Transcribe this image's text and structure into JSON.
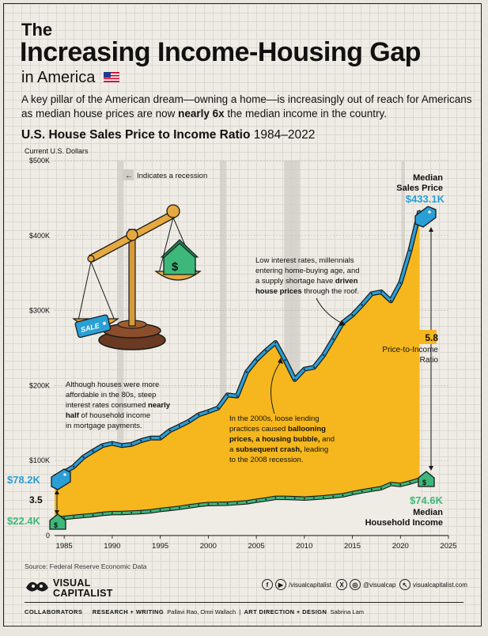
{
  "header": {
    "title_small": "The",
    "title_main": "Increasing Income-Housing Gap",
    "title_sub": "in America",
    "intro_part1": "A key pillar of the American dream—owning a home—is increasingly out of reach for Americans as median house prices are now ",
    "intro_bold": "nearly 6x",
    "intro_part2": " the median income in the country."
  },
  "chart_heading": {
    "title_bold": "U.S. House Sales Price to Income Ratio",
    "title_years": "1984–2022",
    "unit_label": "Current U.S. Dollars"
  },
  "legend": {
    "recession_note": "Indicates a recession"
  },
  "annotations": {
    "eighties_1": "Although houses were more",
    "eighties_2": "affordable in the 80s, steep",
    "eighties_3a": "interest rates consumed ",
    "eighties_3b": "nearly",
    "eighties_4a": "half",
    "eighties_4b": " of household income",
    "eighties_5": "in mortgage payments.",
    "two_thousands_1": "In the 2000s, loose lending",
    "two_thousands_2a": "practices caused ",
    "two_thousands_2b": "ballooning",
    "two_thousands_3a": "prices, a housing bubble,",
    "two_thousands_3b": " and",
    "two_thousands_4a": "a ",
    "two_thousands_4b": "subsequent crash,",
    "two_thousands_4c": " leading",
    "two_thousands_5": "to the 2008 recession.",
    "recent_1": "Low interest rates, millennials",
    "recent_2": "entering home-buying age, and",
    "recent_3a": "a supply shortage have ",
    "recent_3b": "driven",
    "recent_4a": "house prices",
    "recent_4b": " through the roof."
  },
  "labels": {
    "start_price": "$78.2K",
    "start_income": "$22.4K",
    "start_ratio": "3.5",
    "end_price_title_1": "Median",
    "end_price_title_2": "Sales Price",
    "end_price": "$433.1K",
    "end_ratio": "5.8",
    "end_ratio_title_1": "Price-to-Income",
    "end_ratio_title_2": "Ratio",
    "end_income": "$74.6K",
    "end_income_title_1": "Median",
    "end_income_title_2": "Household Income",
    "sale_tag": "SALE",
    "dollar_sign": "$"
  },
  "footer": {
    "source": "Source: Federal Reserve Economic Data",
    "brand_line1": "VISUAL",
    "brand_line2": "CAPITALIST",
    "social_1": "/visualcapitalist",
    "social_2": "@visualcap",
    "social_3": "visualcapitalist.com",
    "collaborators": "COLLABORATORS",
    "research_label": "RESEARCH + WRITING",
    "research_names": "Pallavi Rao, Omri Wallach",
    "art_label": "ART DIRECTION + DESIGN",
    "art_names": "Sabrina Lam"
  },
  "colors": {
    "price_area": "#f5b71d",
    "income_line": "#3db87a",
    "price_line": "#2a9fd6",
    "recession": "#cfccc6",
    "outline": "#1a1a1a"
  },
  "chart_data": {
    "type": "area",
    "title": "U.S. House Sales Price to Income Ratio",
    "ylabel": "Current U.S. Dollars",
    "xlim": [
      1984,
      2025
    ],
    "ylim": [
      0,
      500000
    ],
    "x_ticks": [
      "1985",
      "1990",
      "1995",
      "2000",
      "2005",
      "2010",
      "2015",
      "2020",
      "2025"
    ],
    "x_tick_values": [
      1985,
      1990,
      1995,
      2000,
      2005,
      2010,
      2015,
      2020,
      2025
    ],
    "y_ticks": [
      "0",
      "$100K",
      "$200K",
      "$300K",
      "$400K",
      "$500K"
    ],
    "y_tick_values": [
      0,
      100000,
      200000,
      300000,
      400000,
      500000
    ],
    "recessions": [
      [
        1990.5,
        1991.2
      ],
      [
        2001.2,
        2001.9
      ],
      [
        2007.9,
        2009.5
      ],
      [
        2020.1,
        2020.4
      ]
    ],
    "x": [
      1984,
      1985,
      1986,
      1987,
      1988,
      1989,
      1990,
      1991,
      1992,
      1993,
      1994,
      1995,
      1996,
      1997,
      1998,
      1999,
      2000,
      2001,
      2002,
      2003,
      2004,
      2005,
      2006,
      2007,
      2008,
      2009,
      2010,
      2011,
      2012,
      2013,
      2014,
      2015,
      2016,
      2017,
      2018,
      2019,
      2020,
      2021,
      2022
    ],
    "series": [
      {
        "name": "Median Sales Price",
        "values": [
          78200,
          84300,
          92000,
          104500,
          112500,
          120000,
          122900,
          120000,
          121500,
          126500,
          130000,
          130000,
          140000,
          146000,
          152500,
          161000,
          165300,
          170000,
          187500,
          186000,
          218000,
          234000,
          246500,
          257400,
          233900,
          208000,
          221800,
          224300,
          240500,
          262000,
          284000,
          294000,
          307500,
          322500,
          325000,
          313000,
          336900,
          380000,
          433100
        ]
      },
      {
        "name": "Median Household Income",
        "values": [
          22400,
          23600,
          24900,
          26100,
          27200,
          28900,
          29900,
          30100,
          30600,
          31200,
          32300,
          34100,
          35500,
          37000,
          38900,
          40700,
          41990,
          42230,
          42410,
          43320,
          44330,
          46330,
          48200,
          50230,
          50300,
          49780,
          49280,
          50050,
          51020,
          52250,
          53660,
          56520,
          59040,
          61140,
          63180,
          68700,
          67520,
          70780,
          74600
        ]
      }
    ],
    "ratio_start": 3.5,
    "ratio_end": 5.8
  }
}
